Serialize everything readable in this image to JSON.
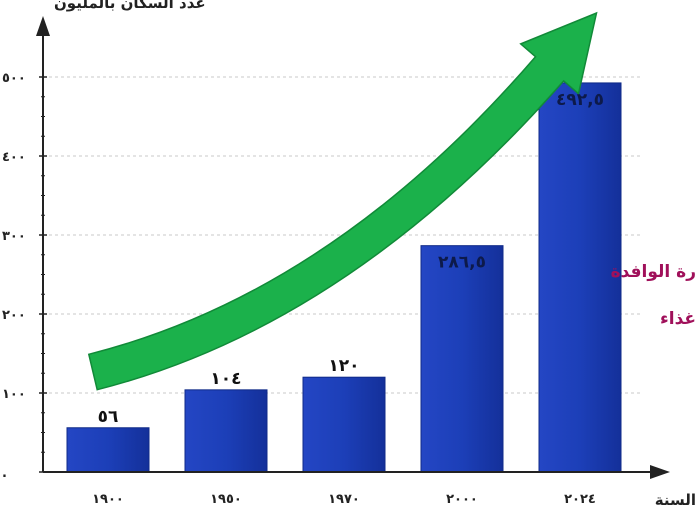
{
  "chart_data": {
    "type": "bar",
    "title": "",
    "ylabel": "عدد السكان بالمليون",
    "xlabel": "السنة",
    "categories": [
      "١٩٠٠",
      "١٩٥٠",
      "١٩٧٠",
      "٢٠٠٠",
      "٢٠٢٤"
    ],
    "x": [
      1900,
      1950,
      1970,
      2000,
      2024
    ],
    "values": [
      56,
      104,
      120,
      286.5,
      492.5
    ],
    "value_labels": [
      "٥٦",
      "١٠٤",
      "١٢٠",
      "٢٨٦,٥",
      "٤٩٢,٥"
    ],
    "yticks": [
      0,
      100,
      200,
      300,
      400,
      500
    ],
    "ytick_labels": [
      ".",
      "١٠٠",
      "٢٠٠",
      "٣٠٠",
      "٤٠٠",
      "٥٠٠"
    ],
    "ylim": [
      0,
      560
    ],
    "grid": true,
    "bar_color": "#1c3fb8",
    "arrow_color": "#1bb14b",
    "annotation_lines": [
      "رة الوافدة",
      "غذاء"
    ]
  }
}
